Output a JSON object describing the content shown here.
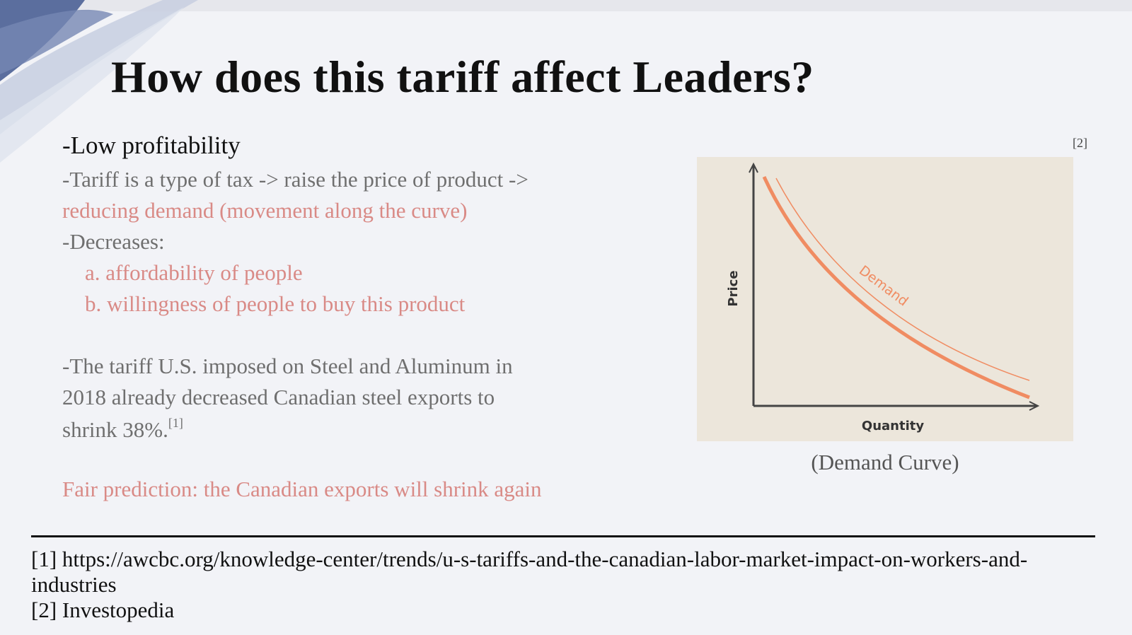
{
  "slide": {
    "title": "How does this tariff affect Leaders?"
  },
  "content": {
    "heading": "-Low profitability",
    "line1": "-Tariff is a type of tax -> raise the price of product ->",
    "line2": "reducing demand (movement along the curve)",
    "decreases": "-Decreases:",
    "item_a": "a. affordability of people",
    "item_b": "b. willingness of people to buy this product",
    "para1": "-The tariff U.S. imposed on Steel and Aluminum in",
    "para2": "2018 already decreased Canadian steel exports to",
    "para3": "shrink 38%.",
    "para3_ref": "[1]",
    "prediction": "Fair prediction: the Canadian exports will shrink again"
  },
  "figure": {
    "ref": "[2]",
    "caption": "(Demand Curve)",
    "colors": {
      "background": "#ece6db",
      "curve": "#f08c62",
      "axis": "#444444"
    }
  },
  "chart_data": {
    "type": "line",
    "xlabel": "Quantity",
    "ylabel": "Price",
    "series": [
      {
        "name": "Demand",
        "label_on_curve": "Demand"
      }
    ],
    "grid": false,
    "legend": "none"
  },
  "references": {
    "ref1": "[1] https://awcbc.org/knowledge-center/trends/u-s-tariffs-and-the-canadian-labor-market-impact-on-workers-and-industries",
    "ref2": "[2] Investopedia"
  }
}
